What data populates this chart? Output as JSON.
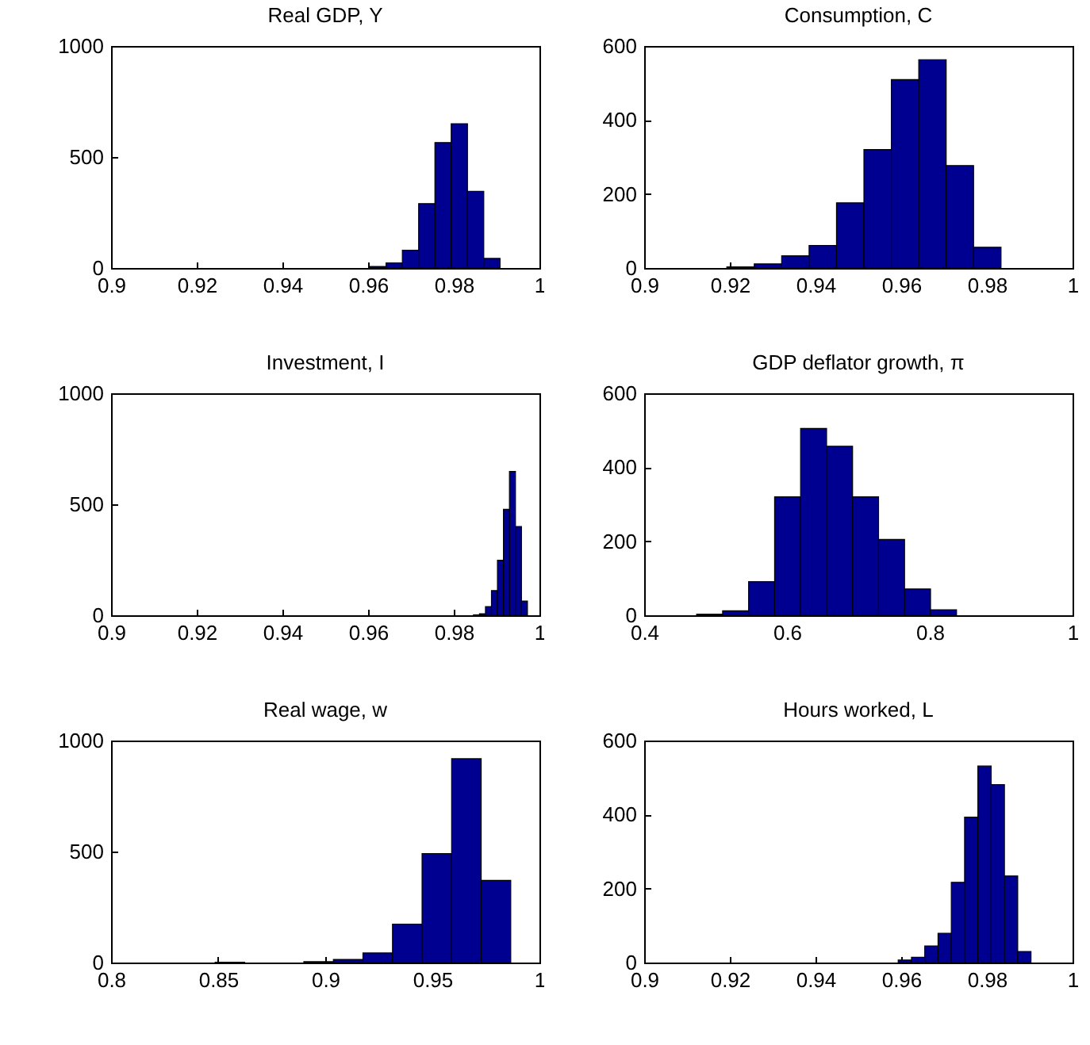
{
  "chart_data": [
    {
      "type": "histogram",
      "title": "Real GDP, Y",
      "bins": [
        0.9604,
        0.9642,
        0.968,
        0.9718,
        0.9756,
        0.9794,
        0.9832,
        0.987,
        0.9908
      ],
      "values": [
        7,
        23,
        80,
        290,
        565,
        650,
        345,
        43
      ],
      "color": "#000090",
      "xlim": [
        0.9,
        1
      ],
      "xticks": [
        0.9,
        0.92,
        0.94,
        0.96,
        0.98,
        1
      ],
      "ylim": [
        0,
        1000
      ],
      "yticks": [
        0,
        500,
        1000
      ]
    },
    {
      "type": "histogram",
      "title": "Consumption, C",
      "bins": [
        0.9193,
        0.9257,
        0.9321,
        0.9385,
        0.9449,
        0.9513,
        0.9577,
        0.9641,
        0.9705,
        0.9769,
        0.9833
      ],
      "values": [
        3,
        11,
        33,
        61,
        176,
        320,
        509,
        563,
        277,
        56
      ],
      "color": "#000090",
      "xlim": [
        0.9,
        1
      ],
      "xticks": [
        0.9,
        0.92,
        0.94,
        0.96,
        0.98,
        1
      ],
      "ylim": [
        0,
        600
      ],
      "yticks": [
        0,
        200,
        400,
        600
      ]
    },
    {
      "type": "histogram",
      "title": "Investment, I",
      "bins": [
        0.9846,
        0.986,
        0.9874,
        0.9888,
        0.9902,
        0.9916,
        0.993,
        0.9944,
        0.9958,
        0.9972
      ],
      "values": [
        2,
        7,
        39,
        111,
        248,
        477,
        648,
        400,
        64
      ],
      "color": "#000090",
      "xlim": [
        0.9,
        1
      ],
      "xticks": [
        0.9,
        0.92,
        0.94,
        0.96,
        0.98,
        1
      ],
      "ylim": [
        0,
        1000
      ],
      "yticks": [
        0,
        500,
        1000
      ]
    },
    {
      "type": "histogram",
      "title": "GDP deflator growth, π",
      "bins": [
        0.4735,
        0.5099,
        0.5463,
        0.5827,
        0.6191,
        0.6555,
        0.6919,
        0.7283,
        0.7647,
        0.8011,
        0.8375
      ],
      "values": [
        3,
        12,
        91,
        320,
        505,
        457,
        320,
        205,
        71,
        15
      ],
      "color": "#000090",
      "xlim": [
        0.4,
        1
      ],
      "xticks": [
        0.4,
        0.6,
        0.8,
        1
      ],
      "ylim": [
        0,
        600
      ],
      "yticks": [
        0,
        200,
        400,
        600
      ]
    },
    {
      "type": "histogram",
      "title": "Real wage, w",
      "bins": [
        0.8486,
        0.8624,
        0.8762,
        0.89,
        0.9038,
        0.9176,
        0.9314,
        0.9452,
        0.959,
        0.9728,
        0.9866
      ],
      "values": [
        1,
        0,
        0,
        4,
        14,
        43,
        173,
        491,
        918,
        370
      ],
      "color": "#000090",
      "xlim": [
        0.8,
        1
      ],
      "xticks": [
        0.8,
        0.85,
        0.9,
        0.95,
        1
      ],
      "ylim": [
        0,
        1000
      ],
      "yticks": [
        0,
        500,
        1000
      ]
    },
    {
      "type": "histogram",
      "title": "Hours worked, L",
      "bins": [
        0.9593,
        0.9624,
        0.9655,
        0.9686,
        0.9717,
        0.9748,
        0.9779,
        0.981,
        0.9841,
        0.9872,
        0.9903
      ],
      "values": [
        7,
        14,
        45,
        79,
        217,
        393,
        531,
        481,
        234,
        30
      ],
      "color": "#000090",
      "xlim": [
        0.9,
        1
      ],
      "xticks": [
        0.9,
        0.92,
        0.94,
        0.96,
        0.98,
        1
      ],
      "ylim": [
        0,
        600
      ],
      "yticks": [
        0,
        200,
        400,
        600
      ]
    }
  ]
}
